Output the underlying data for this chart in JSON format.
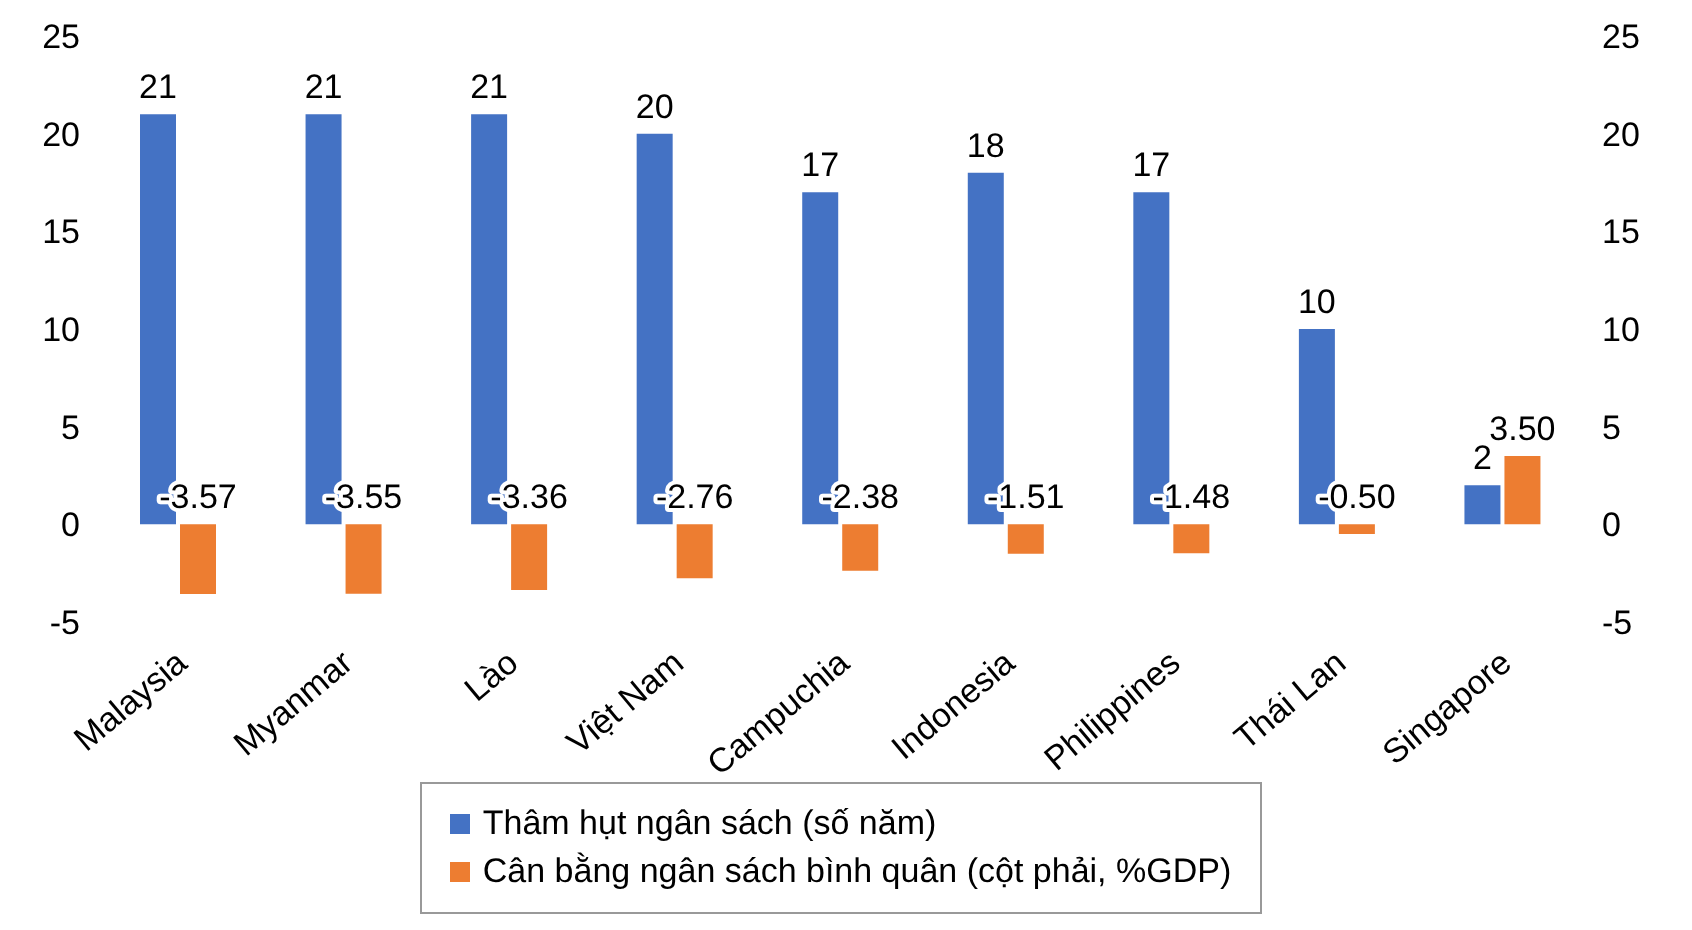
{
  "chart_data": {
    "type": "bar",
    "categories": [
      "Malaysia",
      "Myanmar",
      "Lào",
      "Việt Nam",
      "Campuchia",
      "Indonesia",
      "Philippines",
      "Thái Lan",
      "Singapore"
    ],
    "series": [
      {
        "name": "Thâm hụt ngân sách (số năm)",
        "color": "#4472c4",
        "values": [
          21,
          21,
          21,
          20,
          17,
          18,
          17,
          10,
          2
        ],
        "data_labels": true
      },
      {
        "name": "Cân bằng ngân sách bình quân (cột phải, %GDP)",
        "color": "#ed7d31",
        "axis": "y2",
        "values": [
          -3.57,
          -3.55,
          -3.36,
          -2.76,
          -2.38,
          -1.51,
          -1.48,
          -0.5,
          3.5
        ],
        "value_labels": [
          "-3.57",
          "-3.55",
          "-3.36",
          "-2.76",
          "-2.38",
          "-1.51",
          "-1.48",
          "-0.50",
          "3.50"
        ]
      }
    ],
    "ylim": [
      -5,
      25
    ],
    "yticks": [
      -5,
      0,
      5,
      10,
      15,
      20,
      25
    ],
    "y2lim": [
      -5,
      25
    ],
    "y2ticks": [
      -5,
      0,
      5,
      10,
      15,
      20,
      25
    ],
    "grid": false,
    "legend": "bottom"
  }
}
